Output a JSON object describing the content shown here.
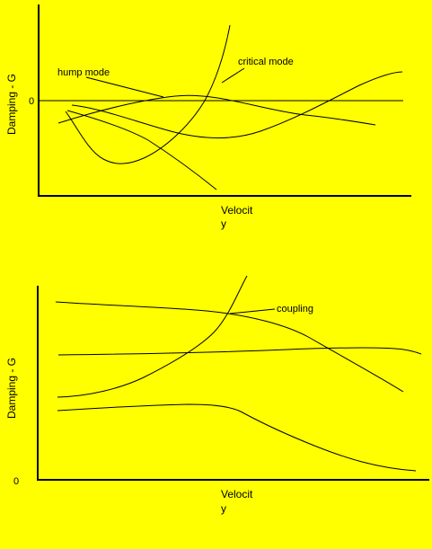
{
  "top_chart": {
    "y_axis_label": "Damping - G",
    "y_tick_label": "0",
    "x_axis_label_line1": "Velocit",
    "x_axis_label_line2": "y",
    "annotation_hump": "hump mode",
    "annotation_critical": "critical mode"
  },
  "bottom_chart": {
    "y_axis_label": "Damping - G",
    "y_tick_label": "0",
    "x_axis_label_line1": "Velocit",
    "x_axis_label_line2": "y",
    "annotation_coupling": "coupling"
  },
  "colors": {
    "background": "#ffff00",
    "ink": "#000000"
  }
}
